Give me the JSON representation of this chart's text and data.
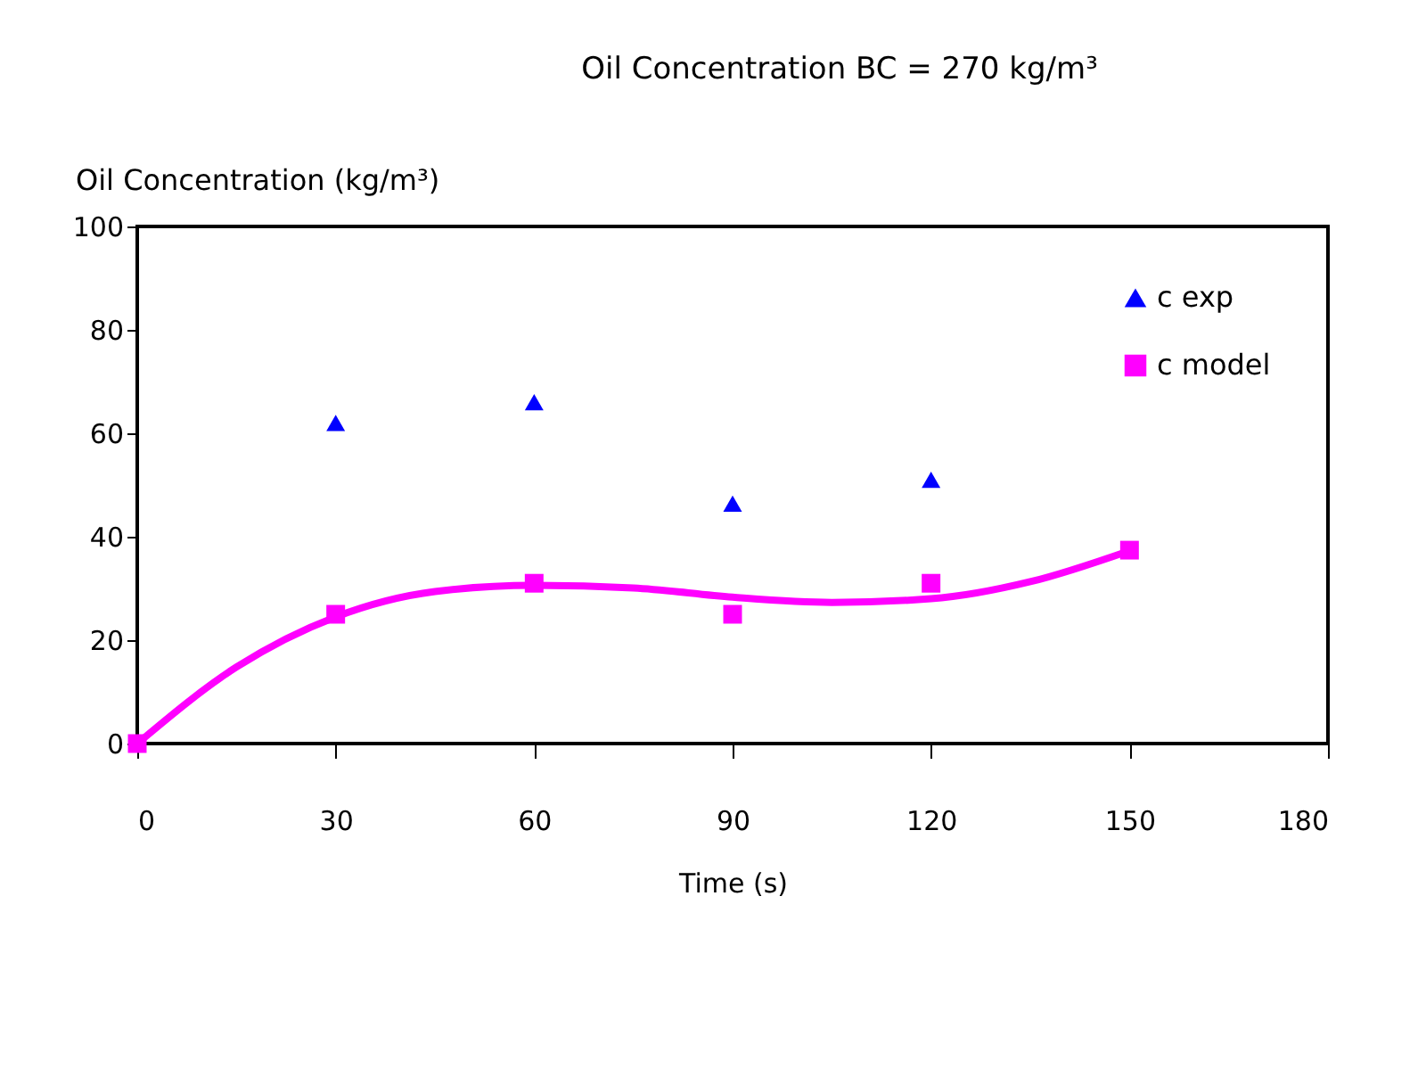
{
  "chart_data": {
    "type": "scatter",
    "title": "Oil Concentration BC = 270   kg/m³",
    "xlabel": "Time (s)",
    "ylabel": "Oil Concentration (kg/m³)",
    "x": [
      0,
      30,
      60,
      90,
      120,
      150
    ],
    "series": [
      {
        "name": "c exp",
        "color": "#0000ff",
        "marker": "triangle",
        "values": [
          null,
          62,
          66,
          46.4,
          51,
          null
        ]
      },
      {
        "name": "c model",
        "color": "#ff00ff",
        "marker": "square",
        "values": [
          0,
          25,
          31,
          25,
          31,
          37.4
        ]
      },
      {
        "type": "line",
        "color": "#ff00ff",
        "marker": "none",
        "x": [
          0,
          15,
          30,
          45,
          60,
          75,
          90,
          105,
          120,
          135,
          150
        ],
        "values": [
          0,
          14.8,
          24.5,
          29.4,
          30.6,
          30.1,
          28.3,
          27.3,
          28,
          31.3,
          37.3
        ]
      }
    ],
    "xlim": [
      0,
      180
    ],
    "xticks": [
      0,
      30,
      60,
      90,
      120,
      150,
      180
    ],
    "ylim": [
      0,
      100
    ],
    "yticks": [
      0,
      20,
      40,
      60,
      80,
      100
    ],
    "grid": false,
    "legend": "top right"
  }
}
